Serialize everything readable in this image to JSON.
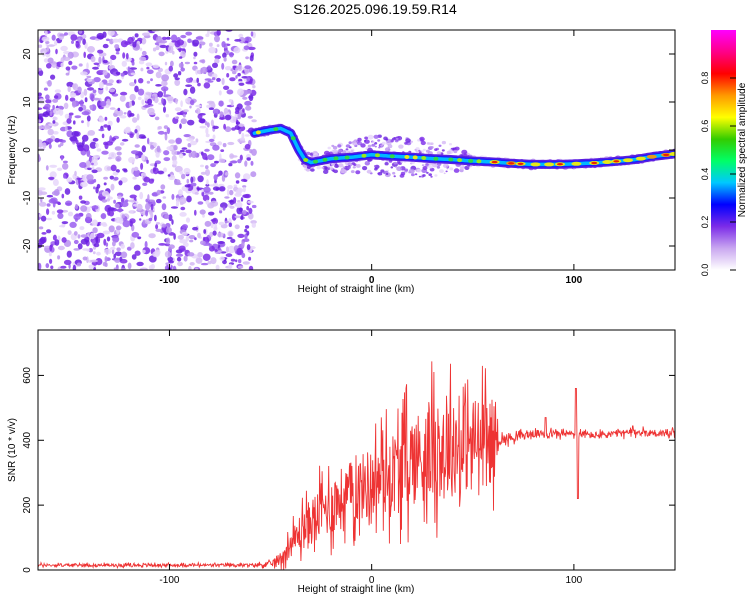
{
  "title": "S126.2025.096.19.59.R14",
  "chart_data": [
    {
      "type": "heatmap",
      "xlabel": "Height of straight line (km)",
      "ylabel": "Frequency (Hz)",
      "xlim": [
        -165,
        150
      ],
      "ylim": [
        -25,
        25
      ],
      "xticks": [
        -100,
        0,
        100
      ],
      "yticks": [
        -20,
        -10,
        0,
        10,
        20
      ],
      "noise_region_x": [
        -165,
        -58
      ],
      "signal_trace": {
        "x": [
          -58,
          -50,
          -45,
          -40,
          -36,
          -33,
          -30,
          -25,
          -20,
          -10,
          0,
          10,
          20,
          30,
          40,
          50,
          60,
          70,
          80,
          90,
          100,
          110,
          120,
          130,
          140,
          150
        ],
        "y": [
          3.5,
          4.2,
          4.5,
          3.5,
          0,
          -2,
          -2.6,
          -2.2,
          -1.8,
          -1.5,
          -1.0,
          -1.3,
          -1.5,
          -1.8,
          -2.0,
          -2.3,
          -2.5,
          -2.8,
          -3.0,
          -3.0,
          -2.9,
          -2.7,
          -2.4,
          -2.0,
          -1.3,
          -0.8
        ],
        "spread": [
          0.6,
          0.6,
          0.6,
          0.8,
          1.2,
          1.5,
          1.5,
          1.8,
          2.2,
          2.5,
          3.0,
          3.2,
          3.2,
          3.0,
          2.6,
          0.7,
          0.6,
          0.6,
          0.6,
          0.6,
          0.6,
          0.6,
          0.6,
          0.6,
          0.6,
          0.6
        ]
      },
      "colorbar": {
        "label": "Normalized spectral amplitude",
        "range": [
          0,
          1
        ],
        "ticks": [
          0.0,
          0.2,
          0.4,
          0.6,
          0.8
        ],
        "tick_labels": [
          "0.0",
          "0.2",
          "0.4",
          "0.6",
          "0.8"
        ],
        "colors": [
          "#ffffff",
          "#c9a6f0",
          "#7b2be8",
          "#0000ff",
          "#00c8ff",
          "#00ff66",
          "#33cc00",
          "#ffff00",
          "#ff9900",
          "#ff0000",
          "#ff0088",
          "#ff00ff"
        ]
      }
    },
    {
      "type": "line",
      "xlabel": "Height of straight line (km)",
      "ylabel": "SNR (10 * v/v)",
      "xlim": [
        -165,
        150
      ],
      "ylim": [
        0,
        740
      ],
      "xticks": [
        -100,
        0,
        100
      ],
      "yticks": [
        0,
        200,
        400,
        600
      ],
      "color": "#ee3333",
      "envelope": {
        "x": [
          -165,
          -60,
          -50,
          -45,
          -40,
          -35,
          -30,
          -25,
          -20,
          -10,
          0,
          10,
          20,
          30,
          40,
          50,
          60,
          63,
          70,
          80,
          90,
          100,
          110,
          120,
          130,
          150
        ],
        "mean": [
          15,
          15,
          18,
          35,
          80,
          120,
          150,
          180,
          200,
          240,
          270,
          300,
          340,
          370,
          380,
          390,
          400,
          400,
          410,
          420,
          420,
          420,
          415,
          420,
          425,
          420
        ],
        "amplitude": [
          8,
          8,
          15,
          40,
          70,
          110,
          130,
          150,
          170,
          180,
          200,
          230,
          260,
          280,
          280,
          260,
          240,
          30,
          25,
          20,
          20,
          20,
          20,
          20,
          20,
          20
        ]
      },
      "spikes": [
        {
          "x": 101,
          "y": 560
        },
        {
          "x": 102,
          "y": 220
        },
        {
          "x": 86,
          "y": 470
        }
      ]
    }
  ]
}
